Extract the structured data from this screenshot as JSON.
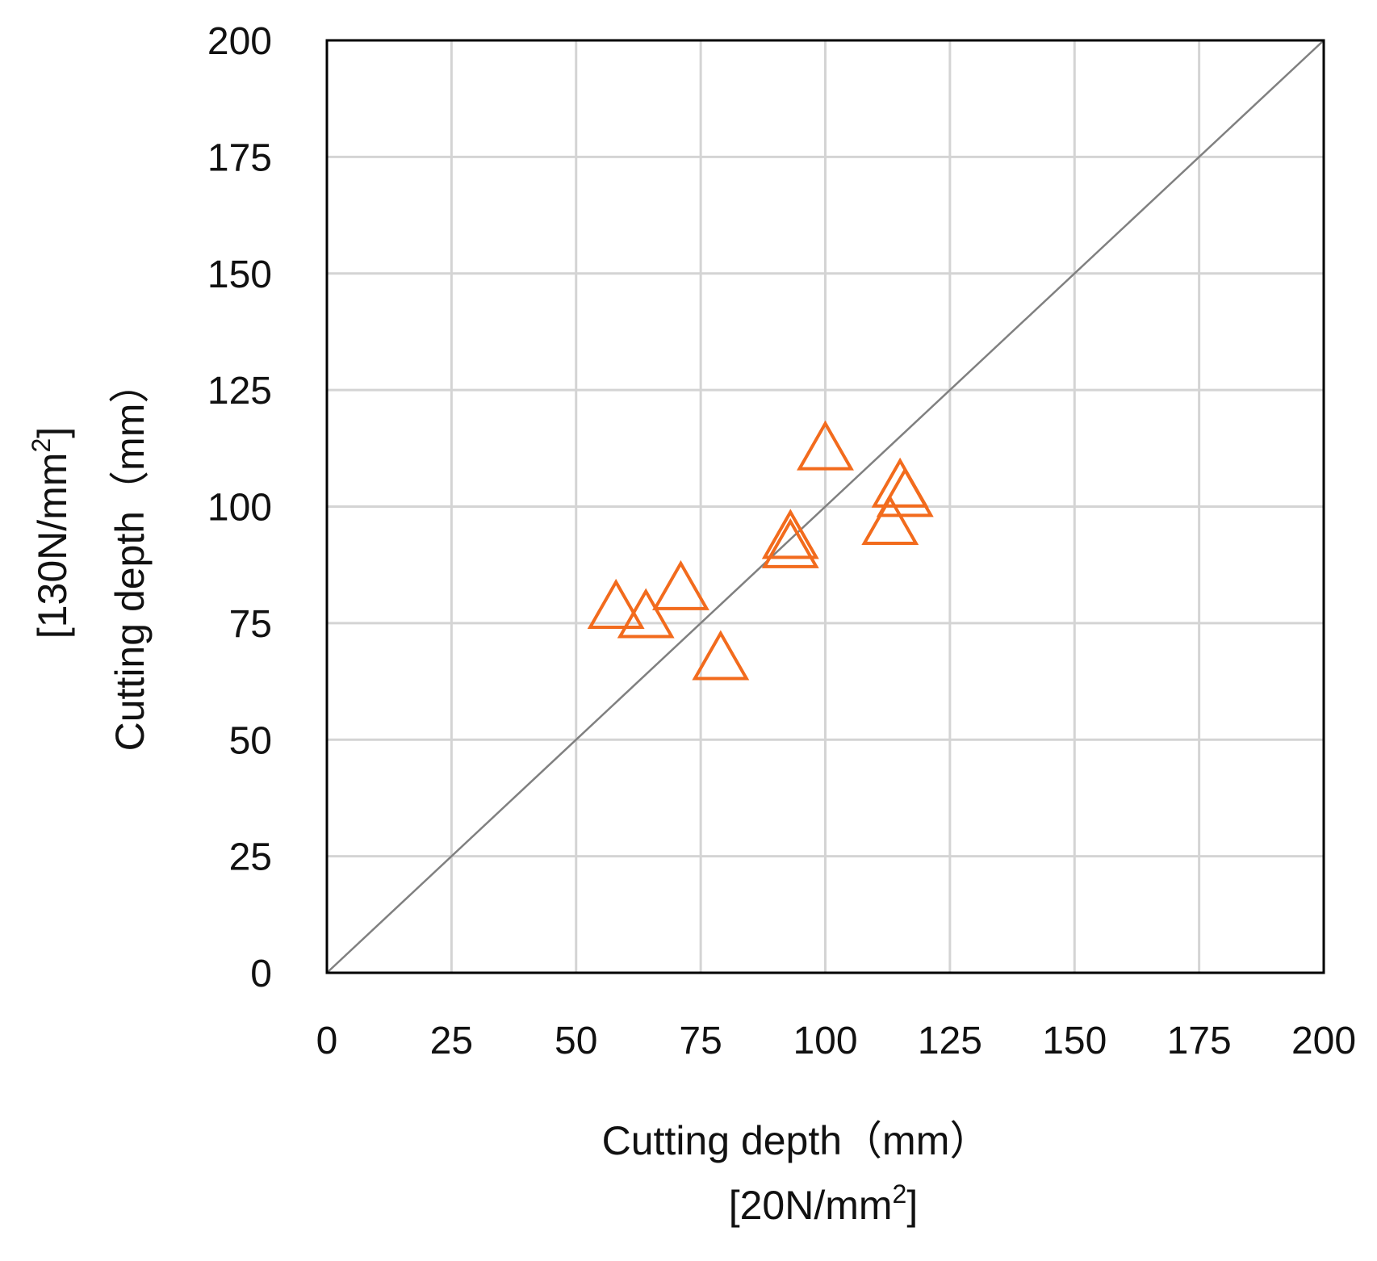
{
  "chart_data": {
    "type": "scatter",
    "xlabel": "Cutting depth（mm）",
    "xlabel_sub_base": "[20N/mm",
    "xlabel_sub_sup": "2",
    "xlabel_sub_end": "]",
    "ylabel": "Cutting depth（mm）",
    "ylabel_sub_base": "[130N/mm",
    "ylabel_sub_sup": "2",
    "ylabel_sub_end": "]",
    "xlim": [
      0,
      200
    ],
    "ylim": [
      0,
      200
    ],
    "xticks": [
      "0",
      "25",
      "50",
      "75",
      "100",
      "125",
      "150",
      "175",
      "200"
    ],
    "yticks": [
      "0",
      "25",
      "50",
      "75",
      "100",
      "125",
      "150",
      "175",
      "200"
    ],
    "grid": true,
    "reference_line": {
      "from": [
        0,
        0
      ],
      "to": [
        200,
        200
      ],
      "color": "#808080"
    },
    "marker": {
      "shape": "open-triangle",
      "color": "#F26B1D"
    },
    "points": [
      {
        "x": 58,
        "y": 78
      },
      {
        "x": 64,
        "y": 76
      },
      {
        "x": 71,
        "y": 82
      },
      {
        "x": 79,
        "y": 67
      },
      {
        "x": 93,
        "y": 93
      },
      {
        "x": 93,
        "y": 91
      },
      {
        "x": 100,
        "y": 112
      },
      {
        "x": 113,
        "y": 96
      },
      {
        "x": 115,
        "y": 104
      },
      {
        "x": 116,
        "y": 102
      }
    ]
  }
}
